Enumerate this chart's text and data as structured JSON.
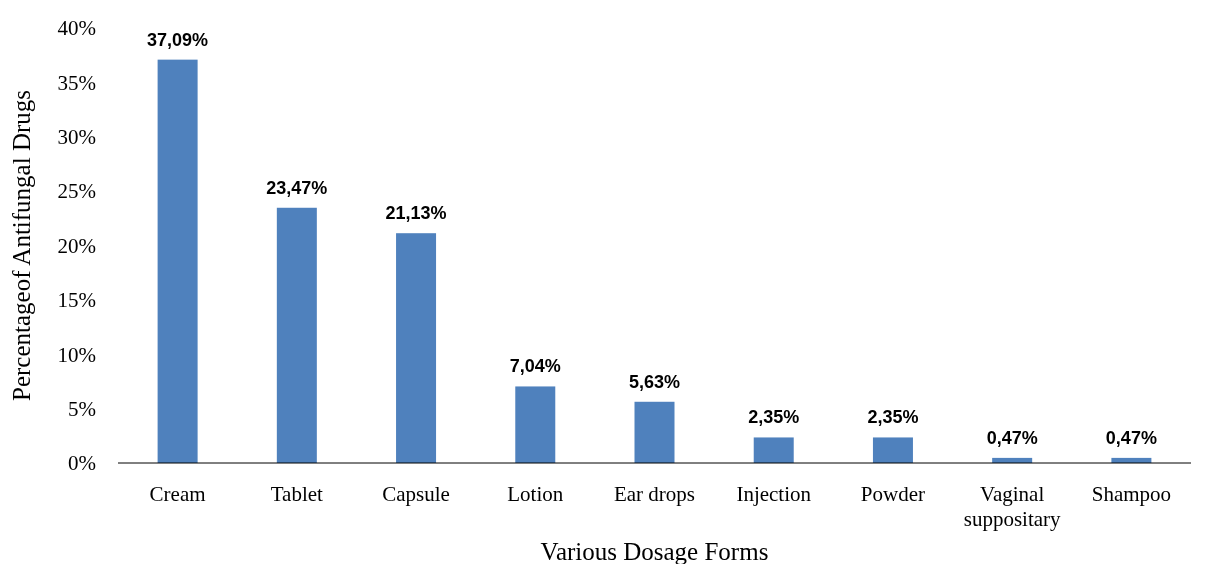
{
  "chart_data": {
    "type": "bar",
    "xlabel": "Various Dosage Forms",
    "ylabel": "Percentageof Antifungal Drugs",
    "categories": [
      "Cream",
      "Tablet",
      "Capsule",
      "Lotion",
      "Ear drops",
      "Injection",
      "Powder",
      "Vaginal suppositary",
      "Shampoo"
    ],
    "values": [
      37.09,
      23.47,
      21.13,
      7.04,
      5.63,
      2.35,
      2.35,
      0.47,
      0.47
    ],
    "value_labels": [
      "37,09%",
      "23,47%",
      "21,13%",
      "7,04%",
      "5,63%",
      "2,35%",
      "2,35%",
      "0,47%",
      "0,47%"
    ],
    "color": "#4f81bd",
    "ylim": [
      0,
      40
    ],
    "yticks": [
      {
        "value": 0,
        "label": "0%"
      },
      {
        "value": 5,
        "label": "5%"
      },
      {
        "value": 10,
        "label": "10%"
      },
      {
        "value": 15,
        "label": "15%"
      },
      {
        "value": 20,
        "label": "20%"
      },
      {
        "value": 25,
        "label": "25%"
      },
      {
        "value": 30,
        "label": "30%"
      },
      {
        "value": 35,
        "label": "35%"
      },
      {
        "value": 40,
        "label": "40%"
      }
    ],
    "grid": false
  }
}
